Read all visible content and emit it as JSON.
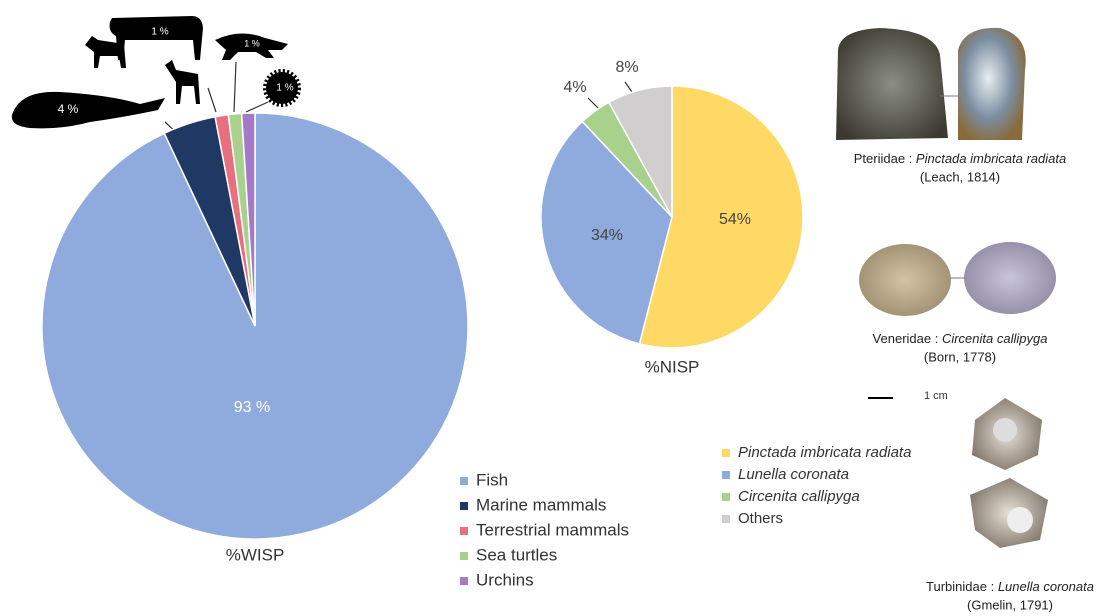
{
  "chart_data": [
    {
      "type": "pie",
      "title": "%WISP",
      "categories": [
        "Fish",
        "Marine mammals",
        "Terrestrial mammals",
        "Sea turtles",
        "Urchins"
      ],
      "values": [
        93,
        4,
        1,
        1,
        1
      ],
      "value_labels": [
        "93 %",
        "4 %",
        "1 %",
        "1 %",
        "1 %"
      ],
      "colors": [
        "#8faadc",
        "#1f3864",
        "#e8707e",
        "#a9d18e",
        "#a678c8"
      ]
    },
    {
      "type": "pie",
      "title": "%NISP",
      "categories": [
        "Pinctada imbricata radiata",
        "Lunella coronata",
        "Circenita callipyga",
        "Others"
      ],
      "values": [
        54,
        34,
        4,
        8
      ],
      "value_labels": [
        "54%",
        "34%",
        "4%",
        "8%"
      ],
      "colors": [
        "#ffd966",
        "#8faadc",
        "#a9d18e",
        "#d0cece"
      ]
    }
  ],
  "specimens": [
    {
      "family": "Pteriidae :",
      "species": "Pinctada imbricata radiata",
      "author": "(Leach, 1814)"
    },
    {
      "family": "Veneridae :",
      "species": "Circenita callipyga",
      "author": "(Born, 1778)"
    },
    {
      "family": "Turbinidae :",
      "species": "Lunella coronata",
      "author": "(Gmelin, 1791)"
    }
  ],
  "scale_bar": "1 cm"
}
